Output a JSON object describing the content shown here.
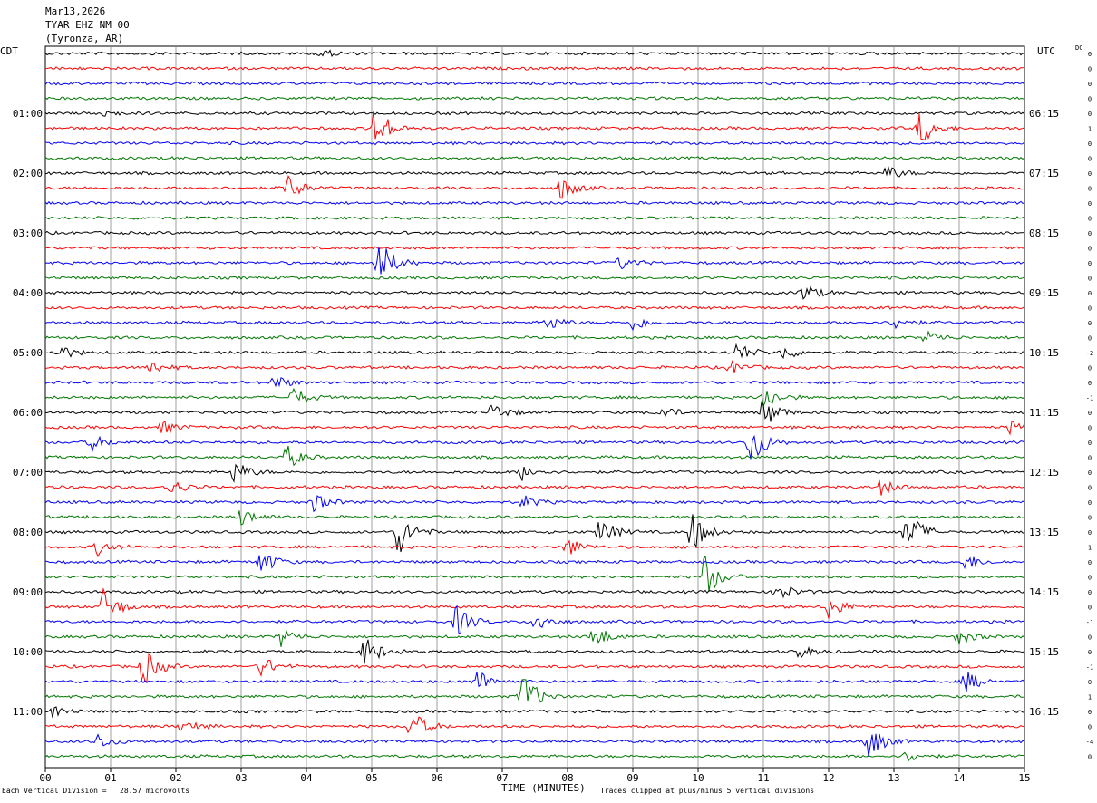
{
  "header": {
    "date": "Mar13,2026",
    "station": "TYAR EHZ NM 00",
    "location": "(Tyronza, AR)"
  },
  "left_zone_label": "CDT",
  "right_zone_label": "UTC",
  "dc_label": "DC",
  "footer": {
    "scale_note": "Each Vertical Division =   28.57 microvolts",
    "axis_title": "TIME (MINUTES)",
    "clip_note": "Traces clipped at plus/minus 5 vertical divisions"
  },
  "chart_data": {
    "type": "line",
    "description_free": true,
    "x_range_minutes": [
      0,
      15
    ],
    "x_ticks": [
      "00",
      "01",
      "02",
      "03",
      "04",
      "05",
      "06",
      "07",
      "08",
      "09",
      "10",
      "11",
      "12",
      "13",
      "14",
      "15"
    ],
    "trace_count": 48,
    "trace_interval_minutes": 15,
    "trace_colors": [
      "#000000",
      "#ff0000",
      "#0000ff",
      "#007700"
    ],
    "left_hour_labels": [
      {
        "row": 4,
        "label": "01:00"
      },
      {
        "row": 8,
        "label": "02:00"
      },
      {
        "row": 12,
        "label": "03:00"
      },
      {
        "row": 16,
        "label": "04:00"
      },
      {
        "row": 20,
        "label": "05:00"
      },
      {
        "row": 24,
        "label": "06:00"
      },
      {
        "row": 28,
        "label": "07:00"
      },
      {
        "row": 32,
        "label": "08:00"
      },
      {
        "row": 36,
        "label": "09:00"
      },
      {
        "row": 40,
        "label": "10:00"
      },
      {
        "row": 44,
        "label": "11:00"
      }
    ],
    "right_hour_labels": [
      {
        "row": 4,
        "label": "06:15"
      },
      {
        "row": 8,
        "label": "07:15"
      },
      {
        "row": 12,
        "label": "08:15"
      },
      {
        "row": 16,
        "label": "09:15"
      },
      {
        "row": 20,
        "label": "10:15"
      },
      {
        "row": 24,
        "label": "11:15"
      },
      {
        "row": 28,
        "label": "12:15"
      },
      {
        "row": 32,
        "label": "13:15"
      },
      {
        "row": 36,
        "label": "14:15"
      },
      {
        "row": 40,
        "label": "15:15"
      },
      {
        "row": 44,
        "label": "16:15"
      }
    ],
    "dc_offsets": [
      "0",
      "0",
      "0",
      "0",
      "0",
      "1",
      "0",
      "0",
      "0",
      "0",
      "0",
      "0",
      "0",
      "0",
      "0",
      "0",
      "0",
      "0",
      "0",
      "0",
      "-2",
      "0",
      "0",
      "-1",
      "0",
      "0",
      "0",
      "0",
      "0",
      "0",
      "0",
      "0",
      "0",
      "1",
      "0",
      "0",
      "0",
      "0",
      "-1",
      "0",
      "0",
      "-1",
      "0",
      "1",
      "0",
      "0",
      "-4",
      "0"
    ],
    "events": [
      {
        "row": 0,
        "min": 4.2,
        "amp": 0.6
      },
      {
        "row": 4,
        "min": 0.75,
        "amp": 0.8
      },
      {
        "row": 5,
        "min": 5.05,
        "amp": 3.0
      },
      {
        "row": 5,
        "min": 13.4,
        "amp": 2.2
      },
      {
        "row": 8,
        "min": 12.9,
        "amp": 0.9
      },
      {
        "row": 9,
        "min": 3.7,
        "amp": 1.8
      },
      {
        "row": 9,
        "min": 7.9,
        "amp": 1.5
      },
      {
        "row": 14,
        "min": 5.1,
        "amp": 3.2
      },
      {
        "row": 14,
        "min": 8.8,
        "amp": 0.8
      },
      {
        "row": 16,
        "min": 11.6,
        "amp": 1.2
      },
      {
        "row": 18,
        "min": 7.7,
        "amp": 1.0
      },
      {
        "row": 18,
        "min": 9.0,
        "amp": 1.0
      },
      {
        "row": 18,
        "min": 13.0,
        "amp": 0.9
      },
      {
        "row": 19,
        "min": 13.5,
        "amp": 0.9
      },
      {
        "row": 20,
        "min": 0.2,
        "amp": 1.0
      },
      {
        "row": 20,
        "min": 10.6,
        "amp": 1.2
      },
      {
        "row": 20,
        "min": 11.3,
        "amp": 0.9
      },
      {
        "row": 21,
        "min": 1.6,
        "amp": 1.0
      },
      {
        "row": 21,
        "min": 10.5,
        "amp": 0.9
      },
      {
        "row": 22,
        "min": 3.5,
        "amp": 1.0
      },
      {
        "row": 23,
        "min": 3.8,
        "amp": 1.3
      },
      {
        "row": 23,
        "min": 11.0,
        "amp": 1.6
      },
      {
        "row": 24,
        "min": 6.85,
        "amp": 1.2
      },
      {
        "row": 24,
        "min": 9.4,
        "amp": 1.0
      },
      {
        "row": 24,
        "min": 11.0,
        "amp": 2.0
      },
      {
        "row": 25,
        "min": 14.8,
        "amp": 1.0
      },
      {
        "row": 25,
        "min": 1.8,
        "amp": 0.8
      },
      {
        "row": 26,
        "min": 0.7,
        "amp": 1.0
      },
      {
        "row": 26,
        "min": 10.8,
        "amp": 3.0
      },
      {
        "row": 27,
        "min": 3.7,
        "amp": 1.5
      },
      {
        "row": 28,
        "min": 2.9,
        "amp": 1.5
      },
      {
        "row": 28,
        "min": 7.3,
        "amp": 1.0
      },
      {
        "row": 29,
        "min": 1.9,
        "amp": 1.1
      },
      {
        "row": 29,
        "min": 12.8,
        "amp": 1.0
      },
      {
        "row": 30,
        "min": 4.1,
        "amp": 1.2
      },
      {
        "row": 30,
        "min": 7.3,
        "amp": 0.9
      },
      {
        "row": 31,
        "min": 3.0,
        "amp": 1.2
      },
      {
        "row": 32,
        "min": 5.4,
        "amp": 3.0
      },
      {
        "row": 32,
        "min": 8.5,
        "amp": 1.8
      },
      {
        "row": 32,
        "min": 9.9,
        "amp": 2.6
      },
      {
        "row": 32,
        "min": 13.2,
        "amp": 3.0
      },
      {
        "row": 33,
        "min": 0.8,
        "amp": 1.0
      },
      {
        "row": 33,
        "min": 8.0,
        "amp": 1.2
      },
      {
        "row": 34,
        "min": 3.3,
        "amp": 1.6
      },
      {
        "row": 34,
        "min": 14.1,
        "amp": 1.0
      },
      {
        "row": 35,
        "min": 10.1,
        "amp": 3.0
      },
      {
        "row": 36,
        "min": 11.2,
        "amp": 1.4
      },
      {
        "row": 37,
        "min": 0.9,
        "amp": 2.4
      },
      {
        "row": 37,
        "min": 12.0,
        "amp": 1.6
      },
      {
        "row": 38,
        "min": 6.3,
        "amp": 2.0
      },
      {
        "row": 38,
        "min": 7.5,
        "amp": 1.4
      },
      {
        "row": 39,
        "min": 3.6,
        "amp": 1.2
      },
      {
        "row": 39,
        "min": 8.4,
        "amp": 1.6
      },
      {
        "row": 39,
        "min": 14.0,
        "amp": 1.0
      },
      {
        "row": 40,
        "min": 4.9,
        "amp": 2.0
      },
      {
        "row": 40,
        "min": 11.5,
        "amp": 1.0
      },
      {
        "row": 41,
        "min": 1.5,
        "amp": 2.4
      },
      {
        "row": 41,
        "min": 3.3,
        "amp": 1.4
      },
      {
        "row": 42,
        "min": 6.6,
        "amp": 1.6
      },
      {
        "row": 42,
        "min": 14.1,
        "amp": 1.4
      },
      {
        "row": 43,
        "min": 7.3,
        "amp": 3.4
      },
      {
        "row": 44,
        "min": 0.1,
        "amp": 0.9
      },
      {
        "row": 45,
        "min": 5.6,
        "amp": 2.2
      },
      {
        "row": 45,
        "min": 2.1,
        "amp": 1.0
      },
      {
        "row": 46,
        "min": 0.8,
        "amp": 1.0
      },
      {
        "row": 46,
        "min": 12.6,
        "amp": 2.4
      },
      {
        "row": 47,
        "min": 13.2,
        "amp": 0.8
      }
    ]
  }
}
